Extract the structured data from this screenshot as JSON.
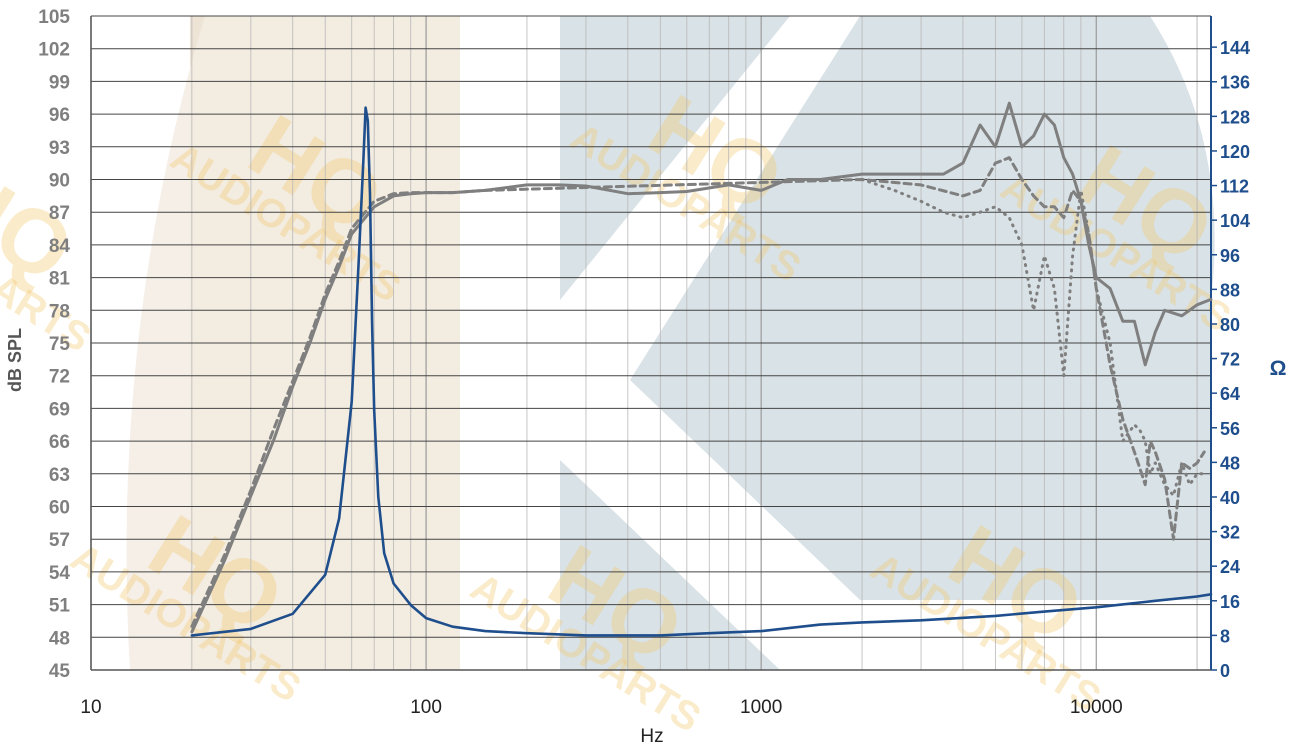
{
  "chart_data": {
    "type": "line",
    "xlabel": "Hz",
    "ylabel": "dB SPL",
    "y2label": "Ω",
    "xscale": "log",
    "xlim": [
      10,
      22000
    ],
    "ylim": [
      45,
      105
    ],
    "y2lim": [
      0,
      151.2
    ],
    "x_ticks": [
      "10",
      "100",
      "1000",
      "10000"
    ],
    "y_ticks": [
      "45",
      "48",
      "51",
      "54",
      "57",
      "60",
      "63",
      "66",
      "69",
      "72",
      "75",
      "78",
      "81",
      "84",
      "87",
      "90",
      "93",
      "96",
      "99",
      "102",
      "105"
    ],
    "y2_ticks": [
      "0",
      "8",
      "16",
      "24",
      "32",
      "40",
      "48",
      "56",
      "64",
      "72",
      "80",
      "88",
      "96",
      "104",
      "112",
      "120",
      "128",
      "136",
      "144"
    ],
    "grid": true,
    "watermark": {
      "brand": "HQ",
      "sub": "AUDIOPARTS"
    },
    "colors": {
      "spl": "#7f7f7f",
      "impedance": "#1f4e8c",
      "left_axis": "#7f7f7f",
      "right_axis": "#1f4e8c",
      "band_warm": "#e9dcc9",
      "band_cool": "#c9d6dc"
    },
    "series": [
      {
        "axis": "left",
        "style": "solid",
        "x": [
          20,
          25,
          30,
          35,
          40,
          45,
          50,
          55,
          60,
          70,
          80,
          90,
          100,
          120,
          150,
          200,
          250,
          300,
          400,
          500,
          600,
          800,
          1000,
          1200,
          1500,
          2000,
          2500,
          3000,
          3500,
          4000,
          4500,
          5000,
          5500,
          6000,
          6500,
          7000,
          7500,
          8000,
          8500,
          9000,
          9500,
          10000,
          11000,
          12000,
          13000,
          14000,
          15000,
          16000,
          18000,
          20000,
          22000
        ],
        "values": [
          48.5,
          55,
          61,
          66,
          71,
          75,
          79,
          82,
          85,
          87.5,
          88.5,
          88.7,
          88.8,
          88.8,
          89,
          89.5,
          89.5,
          89.4,
          88.7,
          88.8,
          88.9,
          89.5,
          89,
          90,
          90,
          90.5,
          90.5,
          90.5,
          90.5,
          91.5,
          95,
          93,
          97,
          93,
          94,
          96,
          95,
          92,
          90.5,
          88,
          84,
          81,
          80,
          77,
          77,
          73,
          76,
          78,
          77.5,
          78.5,
          79
        ]
      },
      {
        "axis": "left",
        "style": "dashed",
        "x": [
          20,
          25,
          30,
          35,
          40,
          45,
          50,
          55,
          60,
          70,
          80,
          90,
          100,
          120,
          150,
          2000,
          3000,
          4000,
          4500,
          5000,
          5500,
          6000,
          6500,
          7000,
          7500,
          8000,
          8500,
          9000,
          9500,
          10000,
          11000,
          12000,
          13000,
          13500,
          14000,
          14500,
          15000,
          16000,
          17000,
          18000,
          19000,
          20000,
          21000
        ],
        "values": [
          49,
          55.5,
          61.5,
          67,
          71.5,
          75.5,
          79.5,
          82.5,
          85.5,
          88,
          88.7,
          88.8,
          88.8,
          88.8,
          89,
          90,
          89.5,
          88.5,
          89,
          91.5,
          92,
          90,
          88.5,
          87.5,
          87.5,
          86.5,
          89,
          88,
          85,
          80,
          73,
          68,
          65,
          63.5,
          62,
          66,
          65,
          62.5,
          57,
          64,
          63.5,
          64,
          65
        ]
      },
      {
        "axis": "left",
        "style": "dotted",
        "x": [
          2000,
          2500,
          3000,
          3500,
          4000,
          4500,
          5000,
          5500,
          6000,
          6500,
          7000,
          7500,
          8000,
          8500,
          9000,
          9500,
          10000,
          11000,
          12000,
          13000,
          13500,
          14000,
          14500,
          15000,
          16000,
          17000,
          18000,
          19000,
          20000,
          21000
        ],
        "values": [
          90,
          89,
          88,
          87,
          86.5,
          87,
          87.5,
          86.5,
          84,
          78,
          83,
          80,
          72,
          83,
          89,
          85,
          80,
          75,
          66,
          67.5,
          67,
          66,
          63,
          64,
          62,
          61,
          64,
          62,
          63,
          63
        ]
      },
      {
        "axis": "right",
        "style": "solid",
        "x": [
          20,
          30,
          40,
          50,
          55,
          60,
          63,
          65,
          66,
          67,
          68,
          69,
          70,
          72,
          75,
          80,
          90,
          100,
          120,
          150,
          200,
          300,
          500,
          700,
          1000,
          1500,
          2000,
          3000,
          5000,
          7000,
          10000,
          15000,
          20000,
          22000
        ],
        "values": [
          8,
          9.5,
          13,
          22,
          35,
          62,
          95,
          118,
          130,
          127,
          110,
          80,
          60,
          40,
          27,
          20,
          15,
          12,
          10,
          9,
          8.5,
          8,
          8,
          8.5,
          9,
          10.5,
          11,
          11.5,
          12.5,
          13.5,
          14.5,
          16,
          17,
          17.5
        ]
      }
    ]
  }
}
